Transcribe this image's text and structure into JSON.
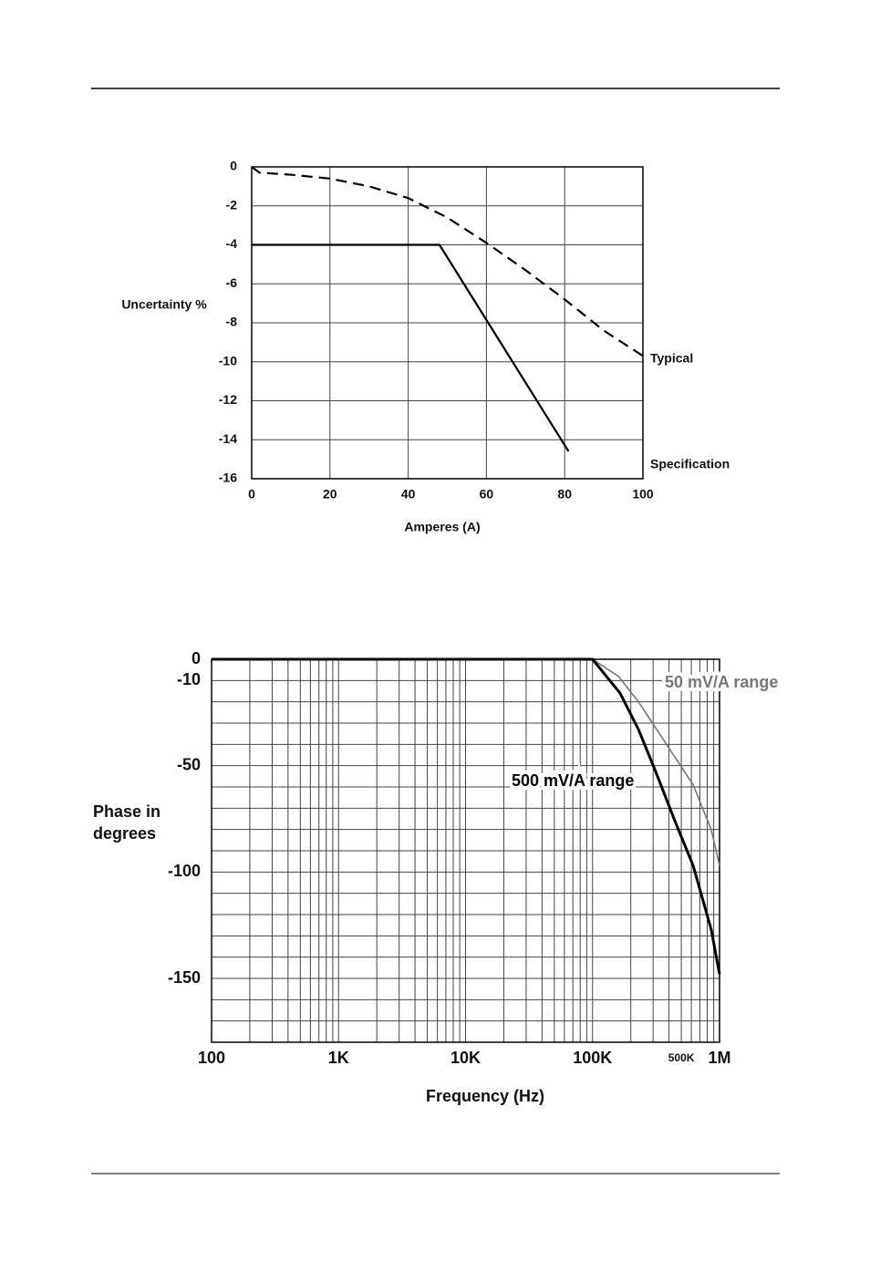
{
  "chart_data": [
    {
      "type": "line",
      "xlabel": "Amperes (A)",
      "ylabel": "Uncertainty %",
      "xlim": [
        0,
        100
      ],
      "ylim": [
        -16,
        0
      ],
      "xticks": [
        0,
        20,
        40,
        60,
        80,
        100
      ],
      "yticks": [
        0,
        -2,
        -4,
        -6,
        -8,
        -10,
        -12,
        -14,
        -16
      ],
      "grid": true,
      "series": [
        {
          "name": "Typical",
          "color": "#000000",
          "style": "dashed",
          "x": [
            0,
            2,
            10,
            20,
            30,
            40,
            50,
            60,
            70,
            80,
            90,
            100
          ],
          "values": [
            0,
            -0.3,
            -0.4,
            -0.6,
            -1.0,
            -1.6,
            -2.6,
            -3.9,
            -5.3,
            -6.8,
            -8.4,
            -9.7
          ]
        },
        {
          "name": "Specification",
          "color": "#000000",
          "style": "solid",
          "x": [
            0,
            48,
            81
          ],
          "values": [
            -4,
            -4,
            -14.6
          ]
        }
      ]
    },
    {
      "type": "line",
      "xscale": "log",
      "xlabel": "Frequency (Hz)",
      "ylabel": [
        "Phase in",
        "degrees"
      ],
      "xlim": [
        100,
        1000000
      ],
      "ylim": [
        -180,
        0
      ],
      "xticks": [
        100,
        {
          "value": 1000,
          "label": "1K"
        },
        {
          "value": 10000,
          "label": "10K"
        },
        {
          "value": 100000,
          "label": "100K"
        },
        {
          "value": 500000,
          "label": "500K"
        },
        {
          "value": 1000000,
          "label": "1M"
        }
      ],
      "yticks": [
        0,
        -10,
        -50,
        -100,
        -150
      ],
      "grid": true,
      "xgrid": [
        100,
        200,
        300,
        400,
        500,
        600,
        700,
        800,
        900,
        1000,
        2000,
        3000,
        4000,
        5000,
        6000,
        7000,
        8000,
        9000,
        10000,
        20000,
        30000,
        40000,
        50000,
        60000,
        70000,
        80000,
        90000,
        100000,
        200000,
        300000,
        400000,
        500000,
        600000,
        700000,
        800000,
        900000,
        1000000
      ],
      "ygrid": [
        0,
        -10,
        -20,
        -30,
        -40,
        -50,
        -60,
        -70,
        -80,
        -90,
        -100,
        -110,
        -120,
        -130,
        -140,
        -150,
        -160,
        -170,
        -180
      ],
      "series": [
        {
          "name": "50 mV/A range",
          "color": "#777777",
          "style": "solid",
          "x": [
            100,
            100000,
            160000,
            230000,
            320000,
            445000,
            620000,
            860000,
            1000000
          ],
          "values": [
            0,
            0,
            -8,
            -20,
            -33,
            -46,
            -59,
            -80,
            -97
          ]
        },
        {
          "name": "500 mV/A range",
          "color": "#000000",
          "style": "solid",
          "x": [
            100,
            100000,
            165000,
            230000,
            320000,
            445000,
            620000,
            860000,
            1000000
          ],
          "values": [
            0,
            0,
            -16,
            -33,
            -54,
            -76,
            -97,
            -127,
            -148
          ]
        }
      ]
    }
  ]
}
